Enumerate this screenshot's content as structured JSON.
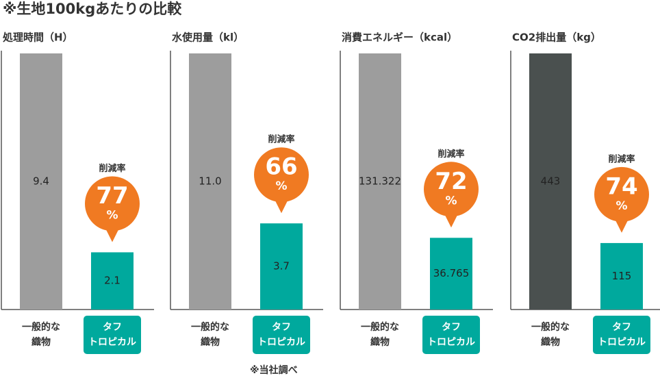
{
  "title": "※生地100kgあたりの比較",
  "footnote": "※当社調べ",
  "chart_data": [
    {
      "type": "bar",
      "title": "処理時間（H）",
      "categories": [
        "一般的な\n織物",
        "タフ\nトロピカル"
      ],
      "values": [
        9.4,
        2.1
      ],
      "colors": [
        "#9d9d9d",
        "#00a99d"
      ],
      "ylim": [
        0,
        9.4
      ],
      "annotation": {
        "label": "削減率",
        "value": 77,
        "unit": "%"
      }
    },
    {
      "type": "bar",
      "title": "水使用量（kl）",
      "categories": [
        "一般的な\n織物",
        "タフ\nトロピカル"
      ],
      "values": [
        11.0,
        3.7
      ],
      "value_labels": [
        "11.0",
        "3.7"
      ],
      "colors": [
        "#9d9d9d",
        "#00a99d"
      ],
      "ylim": [
        0,
        11.0
      ],
      "annotation": {
        "label": "削減率",
        "value": 66,
        "unit": "%"
      }
    },
    {
      "type": "bar",
      "title": "消費エネルギー（kcal）",
      "categories": [
        "一般的な\n織物",
        "タフ\nトロピカル"
      ],
      "values": [
        131.322,
        36.765
      ],
      "colors": [
        "#9d9d9d",
        "#00a99d"
      ],
      "ylim": [
        0,
        131.322
      ],
      "annotation": {
        "label": "削減率",
        "value": 72,
        "unit": "%"
      }
    },
    {
      "type": "bar",
      "title": "CO2排出量（kg）",
      "categories": [
        "一般的な\n織物",
        "タフ\nトロピカル"
      ],
      "values": [
        443,
        115
      ],
      "colors": [
        "#4a504f",
        "#00a99d"
      ],
      "ylim": [
        0,
        443
      ],
      "annotation": {
        "label": "削減率",
        "value": 74,
        "unit": "%"
      }
    }
  ]
}
